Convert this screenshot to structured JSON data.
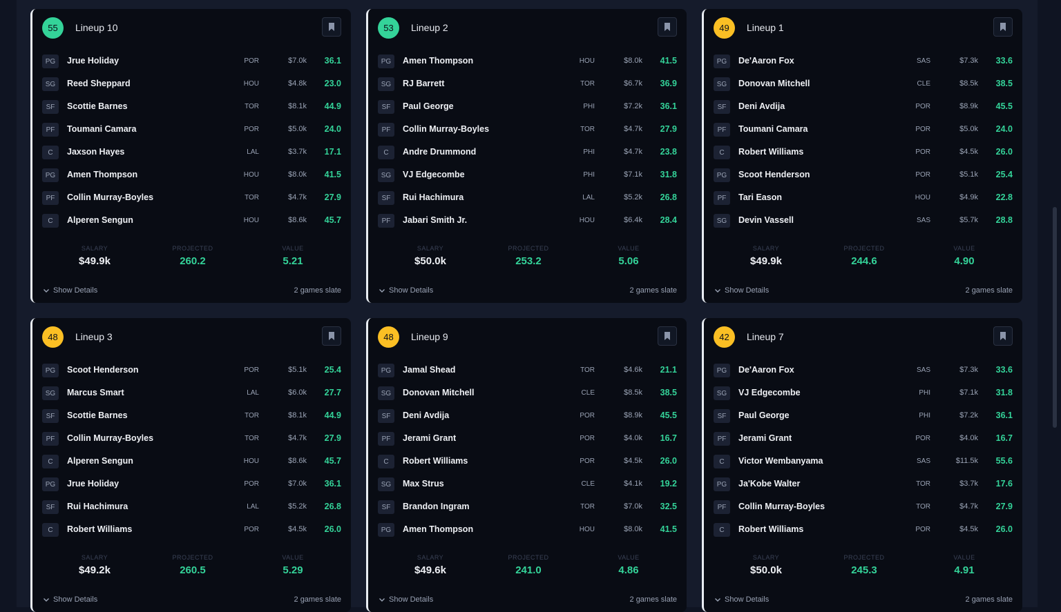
{
  "labels": {
    "salary": "SALARY",
    "projected": "PROJECTED",
    "value": "VALUE",
    "show_details": "Show Details"
  },
  "colors": {
    "green_score": "#34d399",
    "yellow_score": "#fbbf24",
    "projection_green": "#34d399"
  },
  "icons": {
    "bookmark": "bookmark-icon",
    "chevron": "chevron-down-icon"
  },
  "cards": [
    {
      "score": "55",
      "score_color": "green",
      "name": "Lineup 10",
      "players": [
        {
          "pos": "PG",
          "name": "Jrue Holiday",
          "team": "POR",
          "salary": "$7.0k",
          "proj": "36.1"
        },
        {
          "pos": "SG",
          "name": "Reed Sheppard",
          "team": "HOU",
          "salary": "$4.8k",
          "proj": "23.0"
        },
        {
          "pos": "SF",
          "name": "Scottie Barnes",
          "team": "TOR",
          "salary": "$8.1k",
          "proj": "44.9"
        },
        {
          "pos": "PF",
          "name": "Toumani Camara",
          "team": "POR",
          "salary": "$5.0k",
          "proj": "24.0"
        },
        {
          "pos": "C",
          "name": "Jaxson Hayes",
          "team": "LAL",
          "salary": "$3.7k",
          "proj": "17.1"
        },
        {
          "pos": "PG",
          "name": "Amen Thompson",
          "team": "HOU",
          "salary": "$8.0k",
          "proj": "41.5"
        },
        {
          "pos": "PF",
          "name": "Collin Murray-Boyles",
          "team": "TOR",
          "salary": "$4.7k",
          "proj": "27.9"
        },
        {
          "pos": "C",
          "name": "Alperen Sengun",
          "team": "HOU",
          "salary": "$8.6k",
          "proj": "45.7"
        }
      ],
      "salary": "$49.9k",
      "projected": "260.2",
      "value": "5.21",
      "slate": "2 games slate"
    },
    {
      "score": "53",
      "score_color": "green",
      "name": "Lineup 2",
      "players": [
        {
          "pos": "PG",
          "name": "Amen Thompson",
          "team": "HOU",
          "salary": "$8.0k",
          "proj": "41.5"
        },
        {
          "pos": "SG",
          "name": "RJ Barrett",
          "team": "TOR",
          "salary": "$6.7k",
          "proj": "36.9"
        },
        {
          "pos": "SF",
          "name": "Paul George",
          "team": "PHI",
          "salary": "$7.2k",
          "proj": "36.1"
        },
        {
          "pos": "PF",
          "name": "Collin Murray-Boyles",
          "team": "TOR",
          "salary": "$4.7k",
          "proj": "27.9"
        },
        {
          "pos": "C",
          "name": "Andre Drummond",
          "team": "PHI",
          "salary": "$4.7k",
          "proj": "23.8"
        },
        {
          "pos": "SG",
          "name": "VJ Edgecombe",
          "team": "PHI",
          "salary": "$7.1k",
          "proj": "31.8"
        },
        {
          "pos": "SF",
          "name": "Rui Hachimura",
          "team": "LAL",
          "salary": "$5.2k",
          "proj": "26.8"
        },
        {
          "pos": "PF",
          "name": "Jabari Smith Jr.",
          "team": "HOU",
          "salary": "$6.4k",
          "proj": "28.4"
        }
      ],
      "salary": "$50.0k",
      "projected": "253.2",
      "value": "5.06",
      "slate": "2 games slate"
    },
    {
      "score": "49",
      "score_color": "yellow",
      "name": "Lineup 1",
      "players": [
        {
          "pos": "PG",
          "name": "De'Aaron Fox",
          "team": "SAS",
          "salary": "$7.3k",
          "proj": "33.6"
        },
        {
          "pos": "SG",
          "name": "Donovan Mitchell",
          "team": "CLE",
          "salary": "$8.5k",
          "proj": "38.5"
        },
        {
          "pos": "SF",
          "name": "Deni Avdija",
          "team": "POR",
          "salary": "$8.9k",
          "proj": "45.5"
        },
        {
          "pos": "PF",
          "name": "Toumani Camara",
          "team": "POR",
          "salary": "$5.0k",
          "proj": "24.0"
        },
        {
          "pos": "C",
          "name": "Robert Williams",
          "team": "POR",
          "salary": "$4.5k",
          "proj": "26.0"
        },
        {
          "pos": "PG",
          "name": "Scoot Henderson",
          "team": "POR",
          "salary": "$5.1k",
          "proj": "25.4"
        },
        {
          "pos": "PF",
          "name": "Tari Eason",
          "team": "HOU",
          "salary": "$4.9k",
          "proj": "22.8"
        },
        {
          "pos": "SG",
          "name": "Devin Vassell",
          "team": "SAS",
          "salary": "$5.7k",
          "proj": "28.8"
        }
      ],
      "salary": "$49.9k",
      "projected": "244.6",
      "value": "4.90",
      "slate": "2 games slate"
    },
    {
      "score": "48",
      "score_color": "yellow",
      "name": "Lineup 3",
      "players": [
        {
          "pos": "PG",
          "name": "Scoot Henderson",
          "team": "POR",
          "salary": "$5.1k",
          "proj": "25.4"
        },
        {
          "pos": "SG",
          "name": "Marcus Smart",
          "team": "LAL",
          "salary": "$6.0k",
          "proj": "27.7"
        },
        {
          "pos": "SF",
          "name": "Scottie Barnes",
          "team": "TOR",
          "salary": "$8.1k",
          "proj": "44.9"
        },
        {
          "pos": "PF",
          "name": "Collin Murray-Boyles",
          "team": "TOR",
          "salary": "$4.7k",
          "proj": "27.9"
        },
        {
          "pos": "C",
          "name": "Alperen Sengun",
          "team": "HOU",
          "salary": "$8.6k",
          "proj": "45.7"
        },
        {
          "pos": "PG",
          "name": "Jrue Holiday",
          "team": "POR",
          "salary": "$7.0k",
          "proj": "36.1"
        },
        {
          "pos": "SF",
          "name": "Rui Hachimura",
          "team": "LAL",
          "salary": "$5.2k",
          "proj": "26.8"
        },
        {
          "pos": "C",
          "name": "Robert Williams",
          "team": "POR",
          "salary": "$4.5k",
          "proj": "26.0"
        }
      ],
      "salary": "$49.2k",
      "projected": "260.5",
      "value": "5.29",
      "slate": "2 games slate"
    },
    {
      "score": "48",
      "score_color": "yellow",
      "name": "Lineup 9",
      "players": [
        {
          "pos": "PG",
          "name": "Jamal Shead",
          "team": "TOR",
          "salary": "$4.6k",
          "proj": "21.1"
        },
        {
          "pos": "SG",
          "name": "Donovan Mitchell",
          "team": "CLE",
          "salary": "$8.5k",
          "proj": "38.5"
        },
        {
          "pos": "SF",
          "name": "Deni Avdija",
          "team": "POR",
          "salary": "$8.9k",
          "proj": "45.5"
        },
        {
          "pos": "PF",
          "name": "Jerami Grant",
          "team": "POR",
          "salary": "$4.0k",
          "proj": "16.7"
        },
        {
          "pos": "C",
          "name": "Robert Williams",
          "team": "POR",
          "salary": "$4.5k",
          "proj": "26.0"
        },
        {
          "pos": "SG",
          "name": "Max Strus",
          "team": "CLE",
          "salary": "$4.1k",
          "proj": "19.2"
        },
        {
          "pos": "SF",
          "name": "Brandon Ingram",
          "team": "TOR",
          "salary": "$7.0k",
          "proj": "32.5"
        },
        {
          "pos": "PG",
          "name": "Amen Thompson",
          "team": "HOU",
          "salary": "$8.0k",
          "proj": "41.5"
        }
      ],
      "salary": "$49.6k",
      "projected": "241.0",
      "value": "4.86",
      "slate": "2 games slate"
    },
    {
      "score": "42",
      "score_color": "yellow",
      "name": "Lineup 7",
      "players": [
        {
          "pos": "PG",
          "name": "De'Aaron Fox",
          "team": "SAS",
          "salary": "$7.3k",
          "proj": "33.6"
        },
        {
          "pos": "SG",
          "name": "VJ Edgecombe",
          "team": "PHI",
          "salary": "$7.1k",
          "proj": "31.8"
        },
        {
          "pos": "SF",
          "name": "Paul George",
          "team": "PHI",
          "salary": "$7.2k",
          "proj": "36.1"
        },
        {
          "pos": "PF",
          "name": "Jerami Grant",
          "team": "POR",
          "salary": "$4.0k",
          "proj": "16.7"
        },
        {
          "pos": "C",
          "name": "Victor Wembanyama",
          "team": "SAS",
          "salary": "$11.5k",
          "proj": "55.6"
        },
        {
          "pos": "PG",
          "name": "Ja'Kobe Walter",
          "team": "TOR",
          "salary": "$3.7k",
          "proj": "17.6"
        },
        {
          "pos": "PF",
          "name": "Collin Murray-Boyles",
          "team": "TOR",
          "salary": "$4.7k",
          "proj": "27.9"
        },
        {
          "pos": "C",
          "name": "Robert Williams",
          "team": "POR",
          "salary": "$4.5k",
          "proj": "26.0"
        }
      ],
      "salary": "$50.0k",
      "projected": "245.3",
      "value": "4.91",
      "slate": "2 games slate"
    }
  ]
}
